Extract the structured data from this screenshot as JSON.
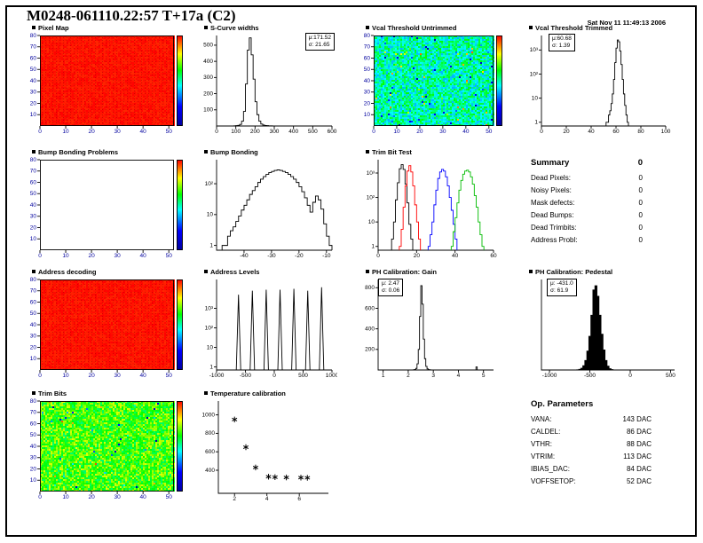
{
  "page": {
    "title": "M0248-061110.22:57 T+17a (C2)",
    "timestamp": "Sat Nov 11 11:49:13 2006"
  },
  "summary": {
    "title": "Summary",
    "value": "0",
    "rows": [
      {
        "label": "Dead Pixels:",
        "value": "0"
      },
      {
        "label": "Noisy Pixels:",
        "value": "0"
      },
      {
        "label": "Mask defects:",
        "value": "0"
      },
      {
        "label": "Dead Bumps:",
        "value": "0"
      },
      {
        "label": "Dead Trimbits:",
        "value": "0"
      },
      {
        "label": "Address Probl:",
        "value": "0"
      }
    ]
  },
  "op_parameters": {
    "title": "Op. Parameters",
    "rows": [
      {
        "label": "VANA:",
        "value": "143 DAC"
      },
      {
        "label": "CALDEL:",
        "value": "86 DAC"
      },
      {
        "label": "VTHR:",
        "value": "88 DAC"
      },
      {
        "label": "VTRIM:",
        "value": "113 DAC"
      },
      {
        "label": "IBIAS_DAC:",
        "value": "84 DAC"
      },
      {
        "label": "VOFFSETOP:",
        "value": "52 DAC"
      }
    ]
  },
  "chart_data": [
    {
      "id": "pixel-map",
      "type": "heatmap",
      "title": "Pixel Map",
      "xlim": [
        0,
        52
      ],
      "ylim": [
        0,
        80
      ],
      "xticks": [
        0,
        10,
        20,
        30,
        40,
        50
      ],
      "yticks": [
        10,
        20,
        30,
        40,
        50,
        60,
        70,
        80
      ],
      "seed": 11,
      "base": 0.985,
      "spread": 0.015,
      "outlier": 0,
      "grid": true,
      "colorbar": true,
      "empty": false
    },
    {
      "id": "s-curve-widths",
      "type": "histogram",
      "title": "S-Curve widths",
      "xlim": [
        0,
        600
      ],
      "ylim": [
        0,
        560
      ],
      "ylog": false,
      "xticks": [
        0,
        100,
        200,
        300,
        400,
        500,
        600
      ],
      "yticks": [
        100,
        200,
        300,
        400,
        500
      ],
      "series": [
        {
          "name": "black",
          "color": "#000000",
          "x0": 90,
          "dx": 10,
          "counts": [
            1,
            2,
            4,
            10,
            30,
            90,
            260,
            470,
            545,
            440,
            290,
            150,
            70,
            30,
            12,
            6,
            3,
            2,
            1,
            1
          ]
        }
      ],
      "stats": [
        "μ:171.52",
        "σ: 21.65"
      ]
    },
    {
      "id": "vcal-threshold-untrimmed",
      "type": "heatmap",
      "title": "Vcal Threshold Untrimmed",
      "xlim": [
        0,
        52
      ],
      "ylim": [
        0,
        80
      ],
      "xticks": [
        0,
        10,
        20,
        30,
        40,
        50
      ],
      "yticks": [
        10,
        20,
        30,
        40,
        50,
        60,
        70,
        80
      ],
      "seed": 22,
      "base": 0.5,
      "spread": 0.12,
      "outlier": 0.04,
      "grid": false,
      "colorbar": true,
      "empty": false
    },
    {
      "id": "vcal-threshold-trimmed",
      "type": "histogram",
      "title": "Vcal Threshold Trimmed",
      "xlim": [
        0,
        100
      ],
      "ylim": [
        0.7,
        4000
      ],
      "ylog": true,
      "xticks": [
        0,
        20,
        40,
        60,
        80,
        100
      ],
      "yticks": [
        [
          1,
          "1"
        ],
        [
          10,
          "10"
        ],
        [
          100,
          "10²"
        ],
        [
          1000,
          "10³"
        ]
      ],
      "series": [
        {
          "name": "black",
          "color": "#000000",
          "x0": 52,
          "dx": 1,
          "counts": [
            1,
            1,
            2,
            3,
            6,
            15,
            60,
            300,
            1200,
            2600,
            2200,
            900,
            250,
            60,
            15,
            5,
            2,
            1
          ]
        }
      ],
      "stats": [
        "μ:60.68",
        "σ: 1.39"
      ]
    },
    {
      "id": "bump-bonding-problems",
      "type": "heatmap",
      "title": "Bump Bonding Problems",
      "xlim": [
        0,
        52
      ],
      "ylim": [
        0,
        80
      ],
      "xticks": [
        0,
        10,
        20,
        30,
        40,
        50
      ],
      "yticks": [
        10,
        20,
        30,
        40,
        50,
        60,
        70,
        80
      ],
      "seed": 1,
      "base": 0,
      "spread": 0,
      "outlier": 0,
      "grid": false,
      "colorbar": true,
      "empty": true
    },
    {
      "id": "bump-bonding",
      "type": "histogram",
      "title": "Bump Bonding",
      "xlim": [
        -50,
        -8
      ],
      "ylim": [
        0.7,
        600
      ],
      "ylog": true,
      "xticks": [
        -40,
        -30,
        -20,
        -10
      ],
      "yticks": [
        [
          1,
          "1"
        ],
        [
          10,
          "10"
        ],
        [
          100,
          "10²"
        ]
      ],
      "series": [
        {
          "name": "black",
          "color": "#000000",
          "x0": -48,
          "dx": 1,
          "counts": [
            1,
            1,
            2,
            3,
            4,
            6,
            9,
            14,
            20,
            30,
            45,
            60,
            80,
            110,
            140,
            170,
            200,
            230,
            250,
            270,
            280,
            270,
            250,
            230,
            200,
            170,
            140,
            110,
            80,
            55,
            35,
            20,
            12,
            25,
            40,
            30,
            15,
            5,
            2,
            1
          ]
        }
      ]
    },
    {
      "id": "trim-bit-test",
      "type": "histogram",
      "title": "Trim Bit Test",
      "xlim": [
        0,
        60
      ],
      "ylim": [
        0.7,
        3500
      ],
      "ylog": true,
      "xticks": [
        0,
        20,
        40,
        60
      ],
      "yticks": [
        [
          1,
          "1"
        ],
        [
          10,
          "10"
        ],
        [
          100,
          "10²"
        ],
        [
          1000,
          "10³"
        ]
      ],
      "series": [
        {
          "name": "black",
          "color": "#000000",
          "x0": 7,
          "dx": 1,
          "counts": [
            2,
            10,
            80,
            400,
            1500,
            2200,
            1400,
            350,
            60,
            8,
            2
          ]
        },
        {
          "name": "red",
          "color": "#ff0000",
          "x0": 11,
          "dx": 1,
          "counts": [
            1,
            5,
            40,
            300,
            1200,
            2000,
            1100,
            300,
            50,
            10,
            2
          ]
        },
        {
          "name": "blue",
          "color": "#0000ff",
          "x0": 26,
          "dx": 1,
          "counts": [
            1,
            3,
            10,
            50,
            200,
            600,
            1100,
            1400,
            1200,
            700,
            300,
            100,
            30,
            8,
            2
          ]
        },
        {
          "name": "green",
          "color": "#00bb00",
          "x0": 38,
          "dx": 1,
          "counts": [
            1,
            4,
            15,
            60,
            200,
            500,
            900,
            1200,
            1300,
            1100,
            700,
            350,
            120,
            40,
            10,
            3,
            1
          ]
        }
      ]
    },
    {
      "id": "address-decoding",
      "type": "heatmap",
      "title": "Address decoding",
      "xlim": [
        0,
        52
      ],
      "ylim": [
        0,
        80
      ],
      "xticks": [
        0,
        10,
        20,
        30,
        40,
        50
      ],
      "yticks": [
        10,
        20,
        30,
        40,
        50,
        60,
        70,
        80
      ],
      "seed": 33,
      "base": 0.985,
      "spread": 0.015,
      "outlier": 0,
      "grid": true,
      "colorbar": true,
      "empty": false
    },
    {
      "id": "address-levels",
      "type": "spikes",
      "title": "Address Levels",
      "xlim": [
        -1000,
        1000
      ],
      "ylim": [
        0.7,
        30000
      ],
      "ylog": true,
      "xticks": [
        -1000,
        -500,
        0,
        500,
        1000
      ],
      "yticks": [
        [
          1,
          "1"
        ],
        [
          10,
          "10"
        ],
        [
          100,
          "10²"
        ],
        [
          1000,
          "10³"
        ]
      ],
      "spikes": [
        [
          -620,
          5000
        ],
        [
          -380,
          8000
        ],
        [
          -140,
          9000
        ],
        [
          100,
          9000
        ],
        [
          340,
          10000
        ],
        [
          580,
          8000
        ],
        [
          820,
          12000
        ]
      ]
    },
    {
      "id": "ph-calibration-gain",
      "type": "histogram",
      "title": "PH Calibration: Gain",
      "xlim": [
        0.8,
        5.4
      ],
      "ylim": [
        0,
        880
      ],
      "ylog": false,
      "xticks": [
        1,
        2,
        3,
        4,
        5
      ],
      "yticks": [
        200,
        400,
        600,
        800
      ],
      "series": [
        {
          "name": "black",
          "color": "#000000",
          "x0": 2.2,
          "dx": 0.05,
          "counts": [
            2,
            5,
            15,
            60,
            200,
            520,
            820,
            640,
            300,
            110,
            35,
            10,
            4,
            1
          ]
        },
        {
          "name": "black-outlier",
          "color": "#000000",
          "x0": 4.7,
          "dx": 0.05,
          "counts": [
            30
          ]
        }
      ],
      "stats": [
        "μ: 2.47",
        "σ: 0.06"
      ]
    },
    {
      "id": "ph-calibration-pedestal",
      "type": "histogram",
      "title": "PH Calibration: Pedestal",
      "xlim": [
        -1100,
        550
      ],
      "ylim": [
        0,
        430
      ],
      "ylog": false,
      "xticks": [
        -1000,
        -500,
        0,
        500
      ],
      "yticks": [],
      "series": [
        {
          "name": "black-filled",
          "color": "#000000",
          "fill": true,
          "x0": -662.5,
          "dx": 25,
          "counts": [
            1,
            3,
            8,
            20,
            45,
            90,
            160,
            260,
            380,
            400,
            350,
            260,
            170,
            95,
            45,
            18,
            6,
            2
          ]
        }
      ],
      "stats": [
        "μ: -431.0",
        "σ: 61.9"
      ]
    },
    {
      "id": "trim-bits",
      "type": "heatmap",
      "title": "Trim Bits",
      "xlim": [
        0,
        52
      ],
      "ylim": [
        0,
        80
      ],
      "xticks": [
        0,
        10,
        20,
        30,
        40,
        50
      ],
      "yticks": [
        10,
        20,
        30,
        40,
        50,
        60,
        70,
        80
      ],
      "seed": 44,
      "base": 0.66,
      "spread": 0.12,
      "outlier": 0.02,
      "grid": false,
      "colorbar": true,
      "empty": false
    },
    {
      "id": "temperature-calibration",
      "type": "scatter",
      "title": "Temperature calibration",
      "xlim": [
        1,
        7.8
      ],
      "ylim": [
        150,
        1150
      ],
      "ylog": false,
      "xticks": [
        2,
        4,
        6
      ],
      "yticks": [
        400,
        600,
        800,
        1000
      ],
      "marker": "star",
      "points": [
        [
          2,
          950
        ],
        [
          2.7,
          650
        ],
        [
          3.3,
          430
        ],
        [
          4.1,
          330
        ],
        [
          4.5,
          325
        ],
        [
          5.2,
          322
        ],
        [
          6.1,
          320
        ],
        [
          6.5,
          318
        ]
      ]
    }
  ]
}
